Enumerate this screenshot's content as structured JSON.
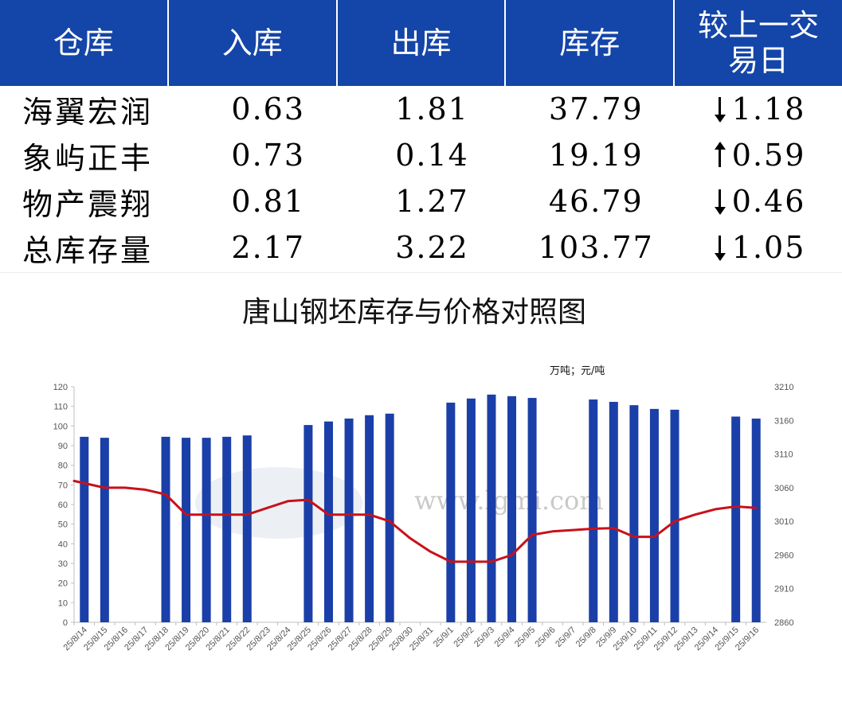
{
  "table": {
    "headers": [
      "仓库",
      "入库",
      "出库",
      "库存",
      "较上一交易日"
    ],
    "rows": [
      {
        "name": "海翼宏润",
        "in": "0.63",
        "out": "1.81",
        "stock": "37.79",
        "direction": "down",
        "change": "1.18"
      },
      {
        "name": "象屿正丰",
        "in": "0.73",
        "out": "0.14",
        "stock": "19.19",
        "direction": "up",
        "change": "0.59"
      },
      {
        "name": "物产震翔",
        "in": "0.81",
        "out": "1.27",
        "stock": "46.79",
        "direction": "down",
        "change": "0.46"
      },
      {
        "name": "总库存量",
        "in": "2.17",
        "out": "3.22",
        "stock": "103.77",
        "direction": "down",
        "change": "1.05"
      }
    ]
  },
  "watermark": "www.lgmi.com",
  "colors": {
    "header_bg": "#1445a8",
    "bar": "#1a3fa8",
    "line": "#c8111a",
    "down": "#119611",
    "up": "#e8141a"
  },
  "chart_data": {
    "type": "bar",
    "title": "唐山钢坯库存与价格对照图",
    "unit_label": "万吨；元/吨",
    "categories": [
      "25/8/14",
      "25/8/15",
      "25/8/16",
      "25/8/17",
      "25/8/18",
      "25/8/19",
      "25/8/20",
      "25/8/21",
      "25/8/22",
      "25/8/23",
      "25/8/24",
      "25/8/25",
      "25/8/26",
      "25/8/27",
      "25/8/28",
      "25/8/29",
      "25/8/30",
      "25/8/31",
      "25/9/1",
      "25/9/2",
      "25/9/3",
      "25/9/4",
      "25/9/5",
      "25/9/6",
      "25/9/7",
      "25/9/8",
      "25/9/9",
      "25/9/10",
      "25/9/11",
      "25/9/12",
      "25/9/13",
      "25/9/14",
      "25/9/15",
      "25/9/16"
    ],
    "series": [
      {
        "values": [
          94.5,
          94,
          null,
          null,
          94.5,
          94,
          94,
          94.5,
          95.2,
          null,
          null,
          100.5,
          102.3,
          103.8,
          105.5,
          106.3,
          null,
          null,
          111.9,
          114,
          116,
          115.2,
          114.3,
          null,
          null,
          113.5,
          112.3,
          110.6,
          108.7,
          108.3,
          null,
          null,
          104.8,
          103.77
        ],
        "axis": "left",
        "kind": "bar"
      },
      {
        "values": [
          3070,
          3060,
          3060,
          3057,
          3050,
          3020,
          3020,
          3020,
          3020,
          3030,
          3040,
          3042,
          3020,
          3020,
          3020,
          3010,
          2985,
          2965,
          2950,
          2950,
          2950,
          2960,
          2990,
          2995,
          2997,
          2999,
          3000,
          2987,
          2987,
          3010,
          3020,
          3028,
          3032,
          3030
        ],
        "axis": "right",
        "kind": "line"
      }
    ],
    "y_left": {
      "min": 0,
      "max": 120,
      "ticks": [
        0,
        10,
        20,
        30,
        40,
        50,
        60,
        70,
        80,
        90,
        100,
        110,
        120
      ]
    },
    "y_right": {
      "min": 2860,
      "max": 3210,
      "ticks": [
        2860,
        2910,
        2960,
        3010,
        3060,
        3110,
        3160,
        3210
      ]
    },
    "grid": false
  }
}
